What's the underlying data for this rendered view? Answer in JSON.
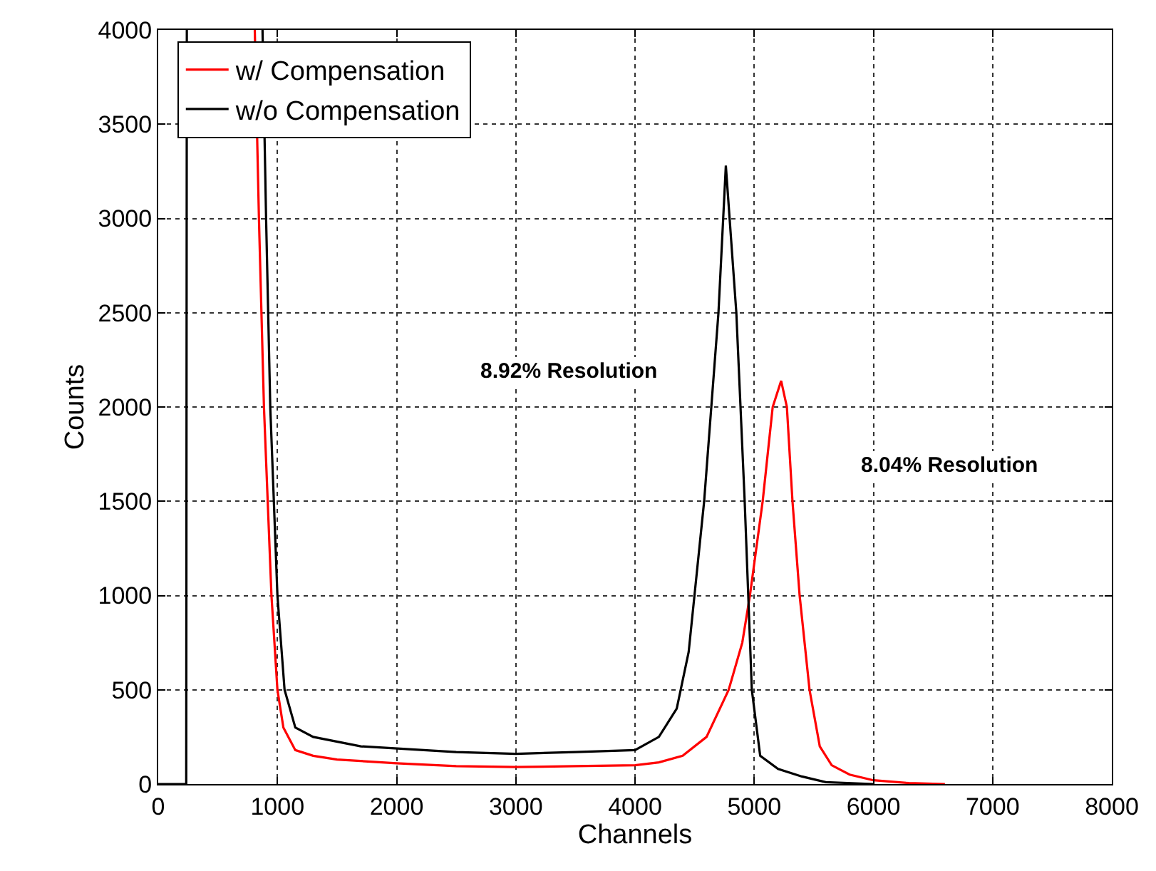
{
  "chart_data": {
    "type": "line",
    "xlabel": "Channels",
    "ylabel": "Counts",
    "xlim": [
      0,
      8000
    ],
    "xticks": [
      0,
      1000,
      2000,
      3000,
      4000,
      5000,
      6000,
      7000,
      8000
    ],
    "ylim": [
      0,
      4000
    ],
    "yticks": [
      0,
      500,
      1000,
      1500,
      2000,
      2500,
      3000,
      3500,
      4000
    ],
    "grid": true,
    "legend": "top left",
    "line_style": "solid",
    "marker": "none",
    "series": [
      {
        "name": "w/ Compensation",
        "color": "#ff0000",
        "x": [
          810,
          845,
          887,
          950,
          1000,
          1050,
          1150,
          1300,
          1500,
          2000,
          2500,
          3000,
          3500,
          4000,
          4200,
          4400,
          4600,
          4786,
          4900,
          4964,
          5071,
          5155,
          5226,
          5274,
          5321,
          5381,
          5464,
          5550,
          5650,
          5800,
          6000,
          6300,
          6600
        ],
        "values": [
          4000,
          3000,
          2000,
          1000,
          500,
          300,
          180,
          150,
          130,
          110,
          95,
          90,
          95,
          100,
          115,
          150,
          250,
          500,
          750,
          1000,
          1500,
          2000,
          2139,
          2000,
          1500,
          1000,
          500,
          200,
          100,
          50,
          20,
          5,
          0
        ]
      },
      {
        "name": "w/o Compensation",
        "color": "#000000",
        "x": [
          0,
          235,
          240,
          null,
          875,
          905,
          940,
          1000,
          1060,
          1150,
          1300,
          1700,
          2500,
          3000,
          3500,
          4000,
          4200,
          4350,
          4450,
          4580,
          4700,
          4762,
          4850,
          4920,
          4980,
          5050,
          5200,
          5400,
          5600,
          6000
        ],
        "values": [
          0,
          0,
          4000,
          null,
          4000,
          3000,
          2000,
          1000,
          500,
          300,
          250,
          200,
          170,
          160,
          170,
          180,
          250,
          400,
          700,
          1500,
          2500,
          3280,
          2500,
          1500,
          500,
          150,
          80,
          40,
          10,
          0
        ]
      }
    ],
    "annotations": [
      "8.92% Resolution",
      "8.04% Resolution"
    ]
  }
}
